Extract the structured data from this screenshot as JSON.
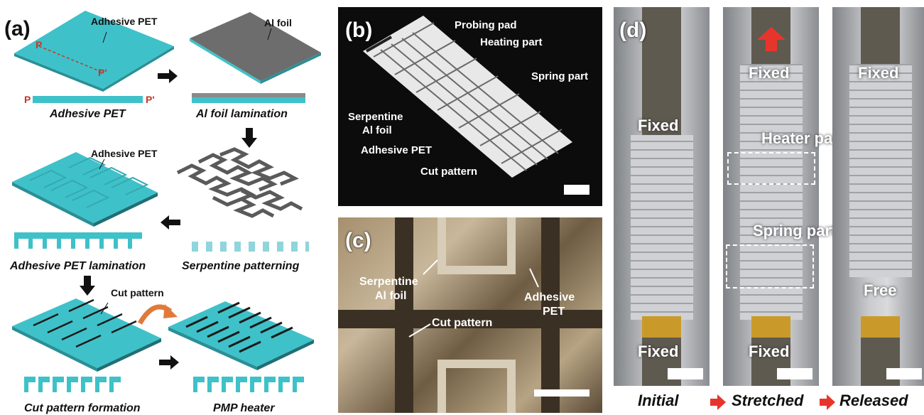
{
  "panel_a": {
    "letter": "(a)",
    "steps": {
      "s1": {
        "label": "Adhesive PET",
        "caption": "Adhesive PET",
        "p_left": "P",
        "p_right": "P'"
      },
      "s2": {
        "label": "Al foil",
        "caption": "Al foil lamination"
      },
      "s3": {
        "caption": "Serpentine patterning"
      },
      "s4": {
        "label": "Adhesive PET",
        "caption": "Adhesive PET lamination"
      },
      "s5": {
        "label": "Cut pattern",
        "caption": "Cut pattern formation"
      },
      "s6": {
        "caption": "PMP heater"
      }
    }
  },
  "panel_b": {
    "letter": "(b)",
    "labels": {
      "probing_pad": "Probing pad",
      "heating_part": "Heating part",
      "spring_part": "Spring part",
      "serpentine": "Serpentine",
      "al_foil": "Al foil",
      "adhesive_pet": "Adhesive PET",
      "cut_pattern": "Cut pattern"
    }
  },
  "panel_c": {
    "letter": "(c)",
    "labels": {
      "serpentine": "Serpentine",
      "al_foil": "Al foil",
      "adhesive": "Adhesive",
      "pet": "PET",
      "cut_pattern": "Cut pattern"
    }
  },
  "panel_d": {
    "letter": "(d)",
    "labels": {
      "fixed": "Fixed",
      "free": "Free",
      "heater_part": "Heater part",
      "spring_part": "Spring part"
    },
    "states": [
      "Initial",
      "Stretched",
      "Released"
    ]
  },
  "colors": {
    "pet": "#3fc1c9",
    "pet_side": "#2a8f96",
    "foil": "#6d6d6d",
    "foil_dark": "#4a4a4a",
    "arrow_red": "#e8352b",
    "curved_arrow": "#e07a3a"
  }
}
